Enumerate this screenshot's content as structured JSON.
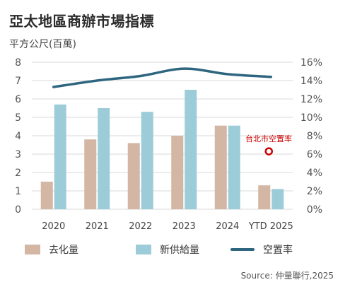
{
  "header": {
    "title": "亞太地區商辦市場指標",
    "unit_label": "平方公尺(百萬)"
  },
  "annotation": {
    "label": "台北市空置率",
    "color": "#cc0000"
  },
  "source": "Source: 仲量聯行,2025",
  "colors": {
    "absorption": "#d4b6a4",
    "supply": "#9dccd9",
    "vacancy": "#2e6680",
    "grid": "#d9d9d9"
  },
  "chart_data": {
    "type": "bar",
    "categories": [
      "2020",
      "2021",
      "2022",
      "2023",
      "2024",
      "YTD 2025"
    ],
    "series": [
      {
        "name": "去化量",
        "type": "bar",
        "axis": "left",
        "values": [
          1.5,
          3.8,
          3.6,
          4.0,
          4.55,
          1.3
        ]
      },
      {
        "name": "新供給量",
        "type": "bar",
        "axis": "left",
        "values": [
          5.7,
          5.5,
          5.3,
          6.5,
          4.55,
          1.1
        ]
      },
      {
        "name": "空置率",
        "type": "line",
        "axis": "right",
        "values": [
          13.3,
          14.0,
          14.5,
          15.3,
          14.7,
          14.4
        ]
      }
    ],
    "y_left": {
      "ylim": [
        0,
        8
      ],
      "ticks": [
        "0",
        "1",
        "2",
        "3",
        "4",
        "5",
        "6",
        "7",
        "8"
      ]
    },
    "y_right": {
      "ylim": [
        0,
        16
      ],
      "ticks": [
        "0%",
        "2%",
        "4%",
        "6%",
        "8%",
        "10%",
        "12%",
        "14%",
        "16%"
      ]
    },
    "taipei_vacancy_marker": {
      "category": "YTD 2025",
      "value": 6.3
    },
    "legend_position": "bottom",
    "grid": true
  }
}
